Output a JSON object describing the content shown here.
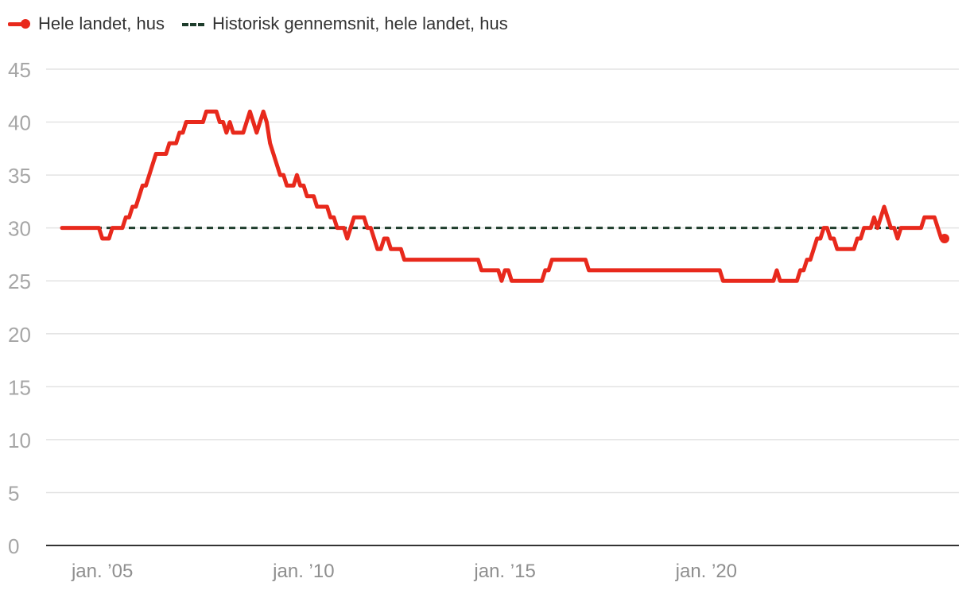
{
  "chart_data": {
    "type": "line",
    "x_start": "2004-01",
    "x_step": "month",
    "x_ticks": [
      {
        "label": "jan. ’05",
        "index": 12
      },
      {
        "label": "jan. ’10",
        "index": 72
      },
      {
        "label": "jan. ’15",
        "index": 132
      },
      {
        "label": "jan. ’20",
        "index": 192
      }
    ],
    "ylim": [
      0,
      45
    ],
    "y_ticks": [
      0,
      5,
      10,
      15,
      20,
      25,
      30,
      35,
      40,
      45
    ],
    "grid": true,
    "legend_position": "top-left",
    "series": [
      {
        "name": "Hele landet, hus",
        "color": "#e8291c",
        "style": "solid",
        "values": [
          30,
          30,
          30,
          30,
          30,
          30,
          30,
          30,
          30,
          30,
          30,
          30,
          29,
          29,
          29,
          30,
          30,
          30,
          30,
          31,
          31,
          32,
          32,
          33,
          34,
          34,
          35,
          36,
          37,
          37,
          37,
          37,
          38,
          38,
          38,
          39,
          39,
          40,
          40,
          40,
          40,
          40,
          40,
          41,
          41,
          41,
          41,
          40,
          40,
          39,
          40,
          39,
          39,
          39,
          39,
          40,
          41,
          40,
          39,
          40,
          41,
          40,
          38,
          37,
          36,
          35,
          35,
          34,
          34,
          34,
          35,
          34,
          34,
          33,
          33,
          33,
          32,
          32,
          32,
          32,
          31,
          31,
          30,
          30,
          30,
          29,
          30,
          31,
          31,
          31,
          31,
          30,
          30,
          29,
          28,
          28,
          29,
          29,
          28,
          28,
          28,
          28,
          27,
          27,
          27,
          27,
          27,
          27,
          27,
          27,
          27,
          27,
          27,
          27,
          27,
          27,
          27,
          27,
          27,
          27,
          27,
          27,
          27,
          27,
          27,
          26,
          26,
          26,
          26,
          26,
          26,
          25,
          26,
          26,
          25,
          25,
          25,
          25,
          25,
          25,
          25,
          25,
          25,
          25,
          26,
          26,
          27,
          27,
          27,
          27,
          27,
          27,
          27,
          27,
          27,
          27,
          27,
          26,
          26,
          26,
          26,
          26,
          26,
          26,
          26,
          26,
          26,
          26,
          26,
          26,
          26,
          26,
          26,
          26,
          26,
          26,
          26,
          26,
          26,
          26,
          26,
          26,
          26,
          26,
          26,
          26,
          26,
          26,
          26,
          26,
          26,
          26,
          26,
          26,
          26,
          26,
          26,
          25,
          25,
          25,
          25,
          25,
          25,
          25,
          25,
          25,
          25,
          25,
          25,
          25,
          25,
          25,
          25,
          26,
          25,
          25,
          25,
          25,
          25,
          25,
          26,
          26,
          27,
          27,
          28,
          29,
          29,
          30,
          30,
          29,
          29,
          28,
          28,
          28,
          28,
          28,
          28,
          29,
          29,
          30,
          30,
          30,
          31,
          30,
          31,
          32,
          31,
          30,
          30,
          29,
          30,
          30,
          30,
          30,
          30,
          30,
          30,
          31,
          31,
          31,
          31,
          30,
          29,
          29
        ]
      },
      {
        "name": "Historisk gennemsnit, hele landet, hus",
        "color": "#1e3d2c",
        "style": "dashed",
        "values": [
          30,
          30
        ],
        "x_index": [
          0,
          251
        ]
      }
    ]
  }
}
